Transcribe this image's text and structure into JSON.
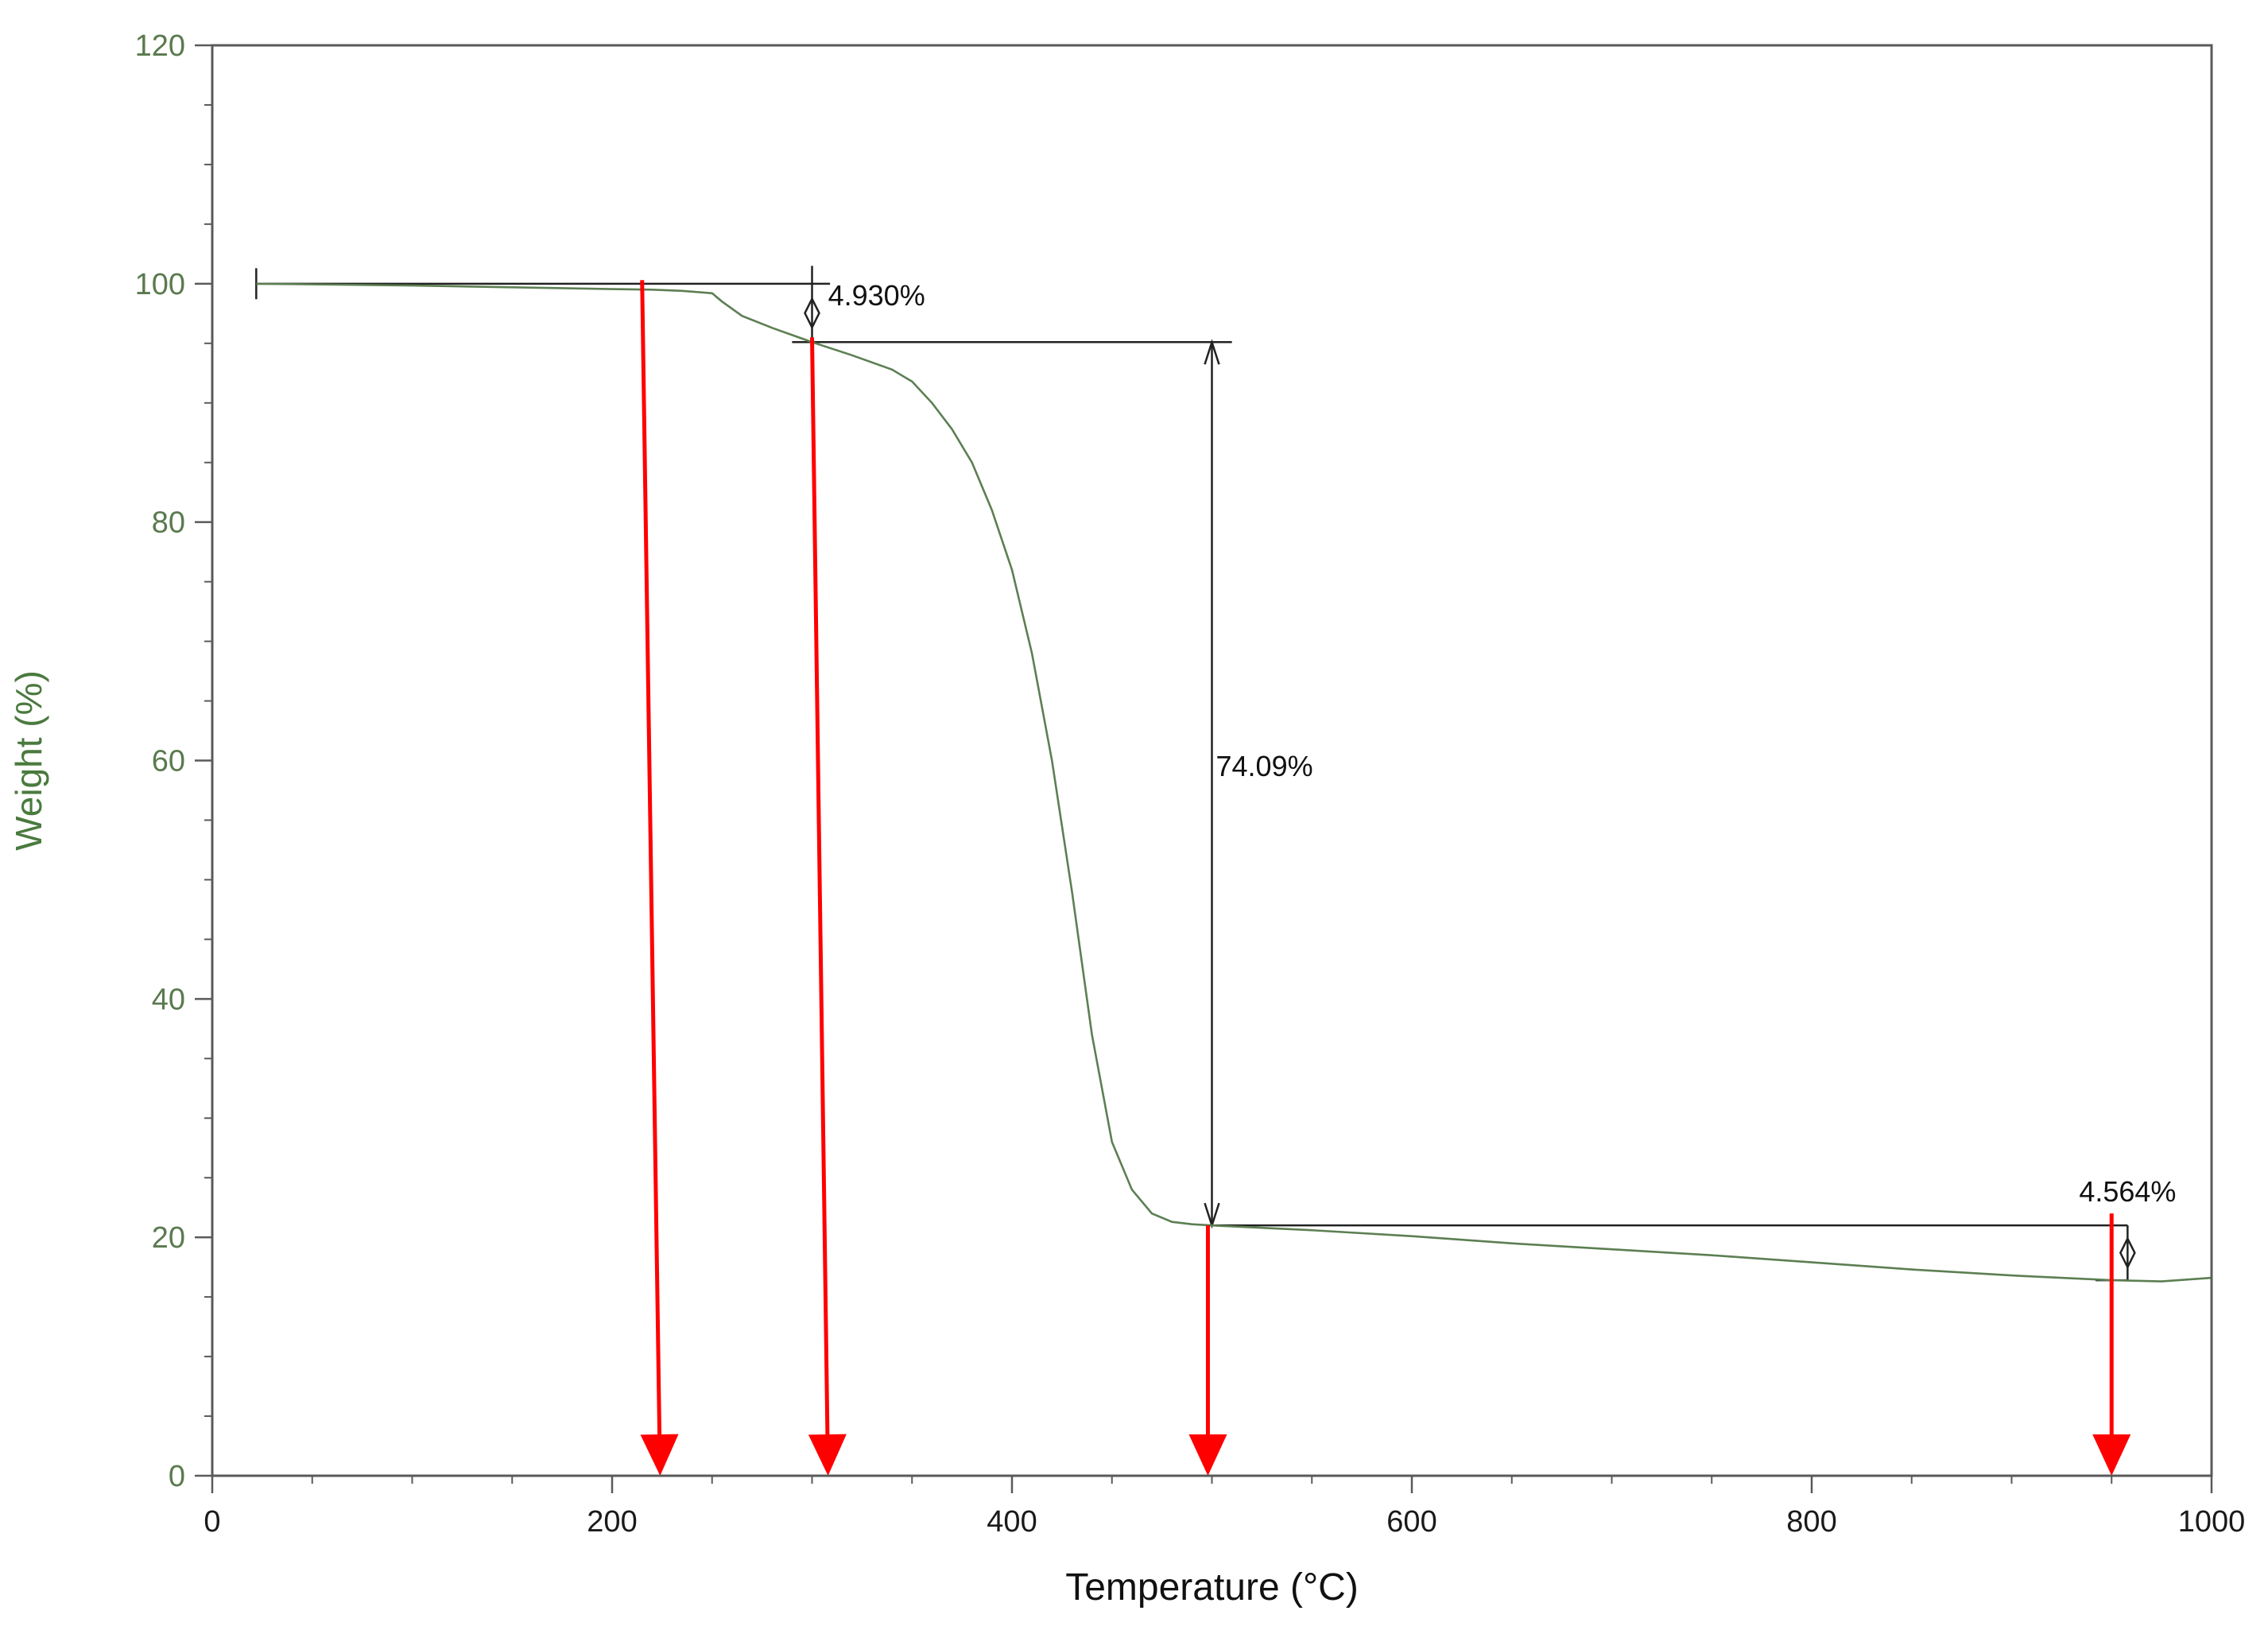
{
  "chart_data": {
    "type": "line",
    "title": "",
    "xlabel": "Temperature (°C)",
    "ylabel": "Weight (%)",
    "xlim": [
      0,
      1000
    ],
    "ylim": [
      0,
      120
    ],
    "x_ticks": [
      0,
      200,
      400,
      600,
      800,
      1000
    ],
    "y_ticks": [
      0,
      20,
      40,
      60,
      80,
      100,
      120
    ],
    "x_tick_labels": [
      "0",
      "200",
      "400",
      "600",
      "800",
      "1000"
    ],
    "y_tick_labels": [
      "0",
      "20",
      "40",
      "60",
      "80",
      "100",
      "120"
    ],
    "grid": false,
    "series": [
      {
        "name": "Weight",
        "color": "#5c7f53",
        "x": [
          22,
          100,
          150,
          200,
          220,
          235,
          250,
          255,
          265,
          280,
          300,
          320,
          340,
          350,
          360,
          370,
          380,
          390,
          400,
          410,
          420,
          430,
          440,
          450,
          460,
          470,
          480,
          490,
          500,
          550,
          600,
          650,
          700,
          750,
          800,
          850,
          900,
          950,
          975,
          1000
        ],
        "y": [
          100,
          99.85,
          99.7,
          99.55,
          99.5,
          99.4,
          99.2,
          98.5,
          97.3,
          96.3,
          95.1,
          94.0,
          92.8,
          91.8,
          90.0,
          87.8,
          85.0,
          81.0,
          76.0,
          69.0,
          60.0,
          49.0,
          37.0,
          28.0,
          24.0,
          22.0,
          21.3,
          21.1,
          21.0,
          20.6,
          20.1,
          19.5,
          19.0,
          18.5,
          17.9,
          17.3,
          16.8,
          16.4,
          16.3,
          16.6
        ]
      }
    ],
    "annotations": [
      {
        "label": "4.930%",
        "x_start": 22,
        "x_end": 300,
        "y_top": 100.0,
        "y_bottom": 95.07,
        "text_x": 308,
        "text_y": 99
      },
      {
        "label": "74.09%",
        "x_start": 290,
        "x_end": 510,
        "y_top": 95.1,
        "y_bottom": 21.0,
        "text_x": 502,
        "text_y": 59.5
      },
      {
        "label": "4.564%",
        "x_start": 500,
        "x_end": 958,
        "y_top": 21.0,
        "y_bottom": 16.4,
        "text_x": 950,
        "text_y": 23.8
      }
    ],
    "arrows": [
      {
        "from": [
          215,
          100.3
        ],
        "to": [
          224,
          0
        ]
      },
      {
        "from": [
          300,
          95.5
        ],
        "to": [
          308,
          0
        ]
      },
      {
        "from": [
          498,
          21.0
        ],
        "to": [
          498,
          0
        ]
      },
      {
        "from": [
          950,
          22.0
        ],
        "to": [
          950,
          0
        ]
      }
    ],
    "colors": {
      "curve": "#5c7f53",
      "arrow": "#ff0000",
      "annotation": "#222222",
      "axis": "#5a5a5a",
      "y_tick_text": "#5a7a4e",
      "x_tick_text": "#1a1a1a"
    }
  }
}
